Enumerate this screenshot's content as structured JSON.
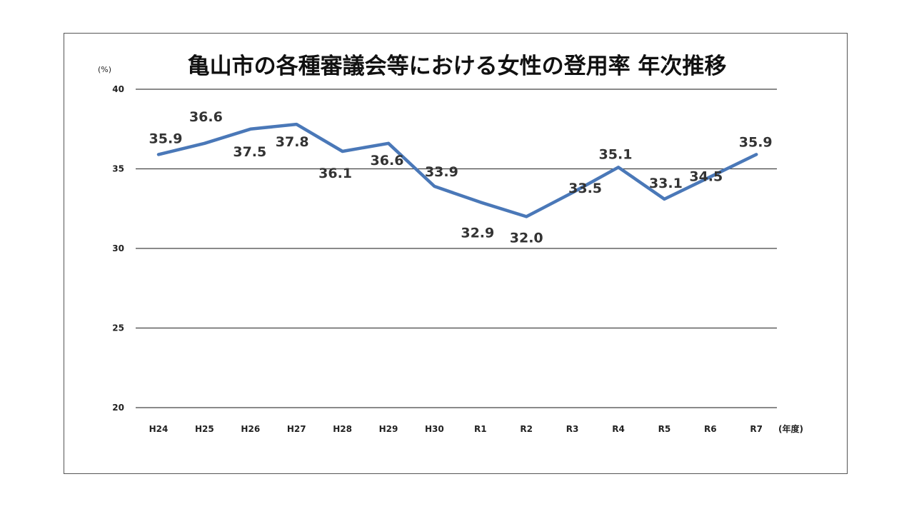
{
  "chart_data": {
    "type": "line",
    "title": "亀山市の各種審議会等における女性の登用率 年次推移",
    "y_unit": "(%)",
    "x_unit": "(年度)",
    "categories": [
      "H24",
      "H25",
      "H26",
      "H27",
      "H28",
      "H29",
      "H30",
      "R1",
      "R2",
      "R3",
      "R4",
      "R5",
      "R6",
      "R7"
    ],
    "series": [
      {
        "values": [
          35.9,
          36.6,
          37.5,
          37.8,
          36.1,
          36.6,
          33.9,
          32.9,
          32.0,
          33.5,
          35.1,
          33.1,
          34.5,
          35.9
        ]
      }
    ],
    "data_labels": [
      "35.9",
      "36.6",
      "37.5",
      "37.8",
      "36.1",
      "36.6",
      "33.9",
      "32.9",
      "32.0",
      "33.5",
      "35.1",
      "33.1",
      "34.5",
      "35.9"
    ],
    "ylim": [
      20,
      40
    ],
    "y_ticks": [
      20,
      25,
      30,
      35,
      40
    ],
    "grid": true,
    "line_color": "#4a78b8"
  }
}
